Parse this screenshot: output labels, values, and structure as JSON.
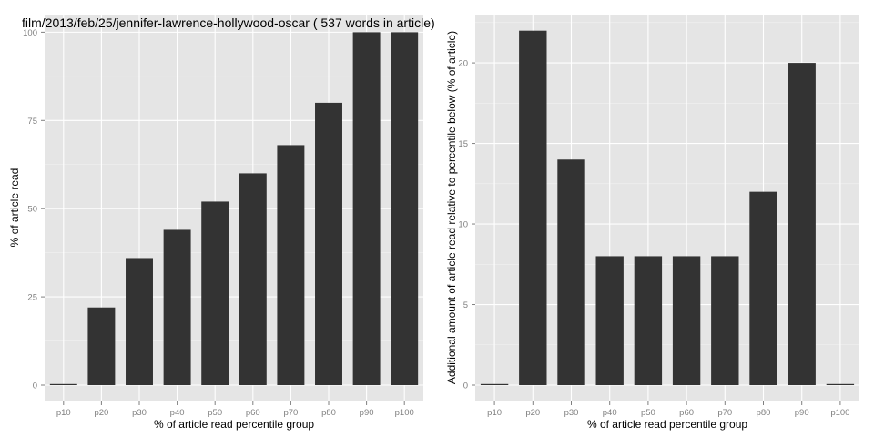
{
  "chart_data": [
    {
      "type": "bar",
      "title": "film/2013/feb/25/jennifer-lawrence-hollywood-oscar ( 537 words in article)",
      "categories": [
        "p10",
        "p20",
        "p30",
        "p40",
        "p50",
        "p60",
        "p70",
        "p80",
        "p90",
        "p100"
      ],
      "values": [
        0,
        22,
        36,
        44,
        52,
        60,
        68,
        80,
        100,
        100
      ],
      "xlabel": "% of article read percentile group",
      "ylabel": "% of article read",
      "ylim": [
        0,
        105
      ],
      "yticks": [
        0,
        25,
        50,
        75,
        100
      ],
      "grid": true,
      "bar_color": "#333333",
      "panel_color": "#e5e5e5"
    },
    {
      "type": "bar",
      "title": "",
      "categories": [
        "p10",
        "p20",
        "p30",
        "p40",
        "p50",
        "p60",
        "p70",
        "p80",
        "p90",
        "p100"
      ],
      "values": [
        0,
        22,
        14,
        8,
        8,
        8,
        8,
        12,
        20,
        0
      ],
      "xlabel": "% of article read percentile group",
      "ylabel": "Additional amount of article read relative to percentile below (% of article)",
      "ylim": [
        0,
        23
      ],
      "yticks": [
        0,
        5,
        10,
        15,
        20
      ],
      "grid": true,
      "bar_color": "#333333",
      "panel_color": "#e5e5e5"
    }
  ]
}
